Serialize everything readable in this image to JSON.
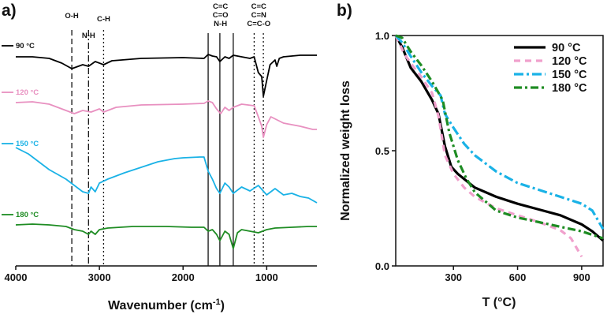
{
  "chart_data": [
    {
      "panel_label": "a)",
      "type": "line",
      "title": "",
      "xlabel": "Wavenumber (cm",
      "xlabel_superscript": "-1",
      "xlabel_close": ")",
      "ylabel": "",
      "xlim": [
        4000,
        400
      ],
      "x_ticks": [
        "4000",
        "3000",
        "2000",
        "1000"
      ],
      "x_tick_values": [
        4000,
        3000,
        2000,
        1000
      ],
      "series": [
        {
          "name": "90 °C",
          "color": "#000000"
        },
        {
          "name": "120 °C",
          "color": "#e890c0"
        },
        {
          "name": "150 °C",
          "color": "#1ab2e6"
        },
        {
          "name": "180 °C",
          "color": "#1e8c23"
        }
      ],
      "annotations": [
        {
          "lines": [
            "O-H"
          ],
          "wavenumber": 3330,
          "style": "dashed"
        },
        {
          "lines": [
            "N-H"
          ],
          "wavenumber": 3130,
          "style": "dashdot"
        },
        {
          "lines": [
            "C-H"
          ],
          "wavenumber": 2950,
          "style": "dotted"
        },
        {
          "lines": [
            "C=C",
            "C=O",
            "N-H"
          ],
          "wavenumber": 1560,
          "style": "solid"
        },
        {
          "lines": [
            "C=C",
            "C=N",
            "C=C-O"
          ],
          "wavenumber": 1100,
          "style": "dotted"
        }
      ]
    },
    {
      "panel_label": "b)",
      "type": "line",
      "title": "",
      "xlabel": "T (°C)",
      "ylabel": "Normalized weight loss",
      "xlim": [
        30,
        1000
      ],
      "ylim": [
        0,
        1.0
      ],
      "x_ticks": [
        "300",
        "600",
        "900"
      ],
      "x_tick_values": [
        300,
        600,
        900
      ],
      "y_ticks": [
        "0.0",
        "0.5",
        "1.0"
      ],
      "y_tick_values": [
        0.0,
        0.5,
        1.0
      ],
      "legend_position": "top-right",
      "series": [
        {
          "name": "90 °C",
          "color": "#000000",
          "dash": "solid",
          "x": [
            30,
            60,
            100,
            150,
            200,
            230,
            260,
            290,
            320,
            360,
            400,
            500,
            600,
            700,
            800,
            900,
            950,
            1000
          ],
          "y": [
            1.0,
            0.95,
            0.86,
            0.8,
            0.72,
            0.66,
            0.52,
            0.43,
            0.4,
            0.37,
            0.34,
            0.3,
            0.27,
            0.245,
            0.22,
            0.18,
            0.15,
            0.11
          ]
        },
        {
          "name": "120 °C",
          "color": "#f0a0cc",
          "dash": "8,6",
          "x": [
            30,
            70,
            100,
            150,
            200,
            230,
            260,
            300,
            350,
            400,
            500,
            600,
            700,
            800,
            850,
            900
          ],
          "y": [
            1.0,
            0.92,
            0.88,
            0.82,
            0.75,
            0.65,
            0.48,
            0.4,
            0.34,
            0.3,
            0.25,
            0.22,
            0.19,
            0.155,
            0.12,
            0.04
          ]
        },
        {
          "name": "150 °C",
          "color": "#1ab2e6",
          "dash": "12,4,3,4",
          "x": [
            30,
            60,
            100,
            150,
            200,
            240,
            260,
            300,
            350,
            400,
            500,
            600,
            700,
            800,
            900,
            950,
            1000
          ],
          "y": [
            1.0,
            0.97,
            0.91,
            0.84,
            0.78,
            0.74,
            0.66,
            0.6,
            0.53,
            0.48,
            0.41,
            0.36,
            0.33,
            0.3,
            0.27,
            0.24,
            0.16
          ]
        },
        {
          "name": "180 °C",
          "color": "#1e8c23",
          "dash": "10,4,3,4",
          "x": [
            30,
            60,
            100,
            150,
            200,
            250,
            280,
            320,
            360,
            400,
            500,
            600,
            700,
            800,
            900,
            1000
          ],
          "y": [
            1.0,
            0.99,
            0.93,
            0.87,
            0.8,
            0.72,
            0.58,
            0.46,
            0.38,
            0.32,
            0.24,
            0.21,
            0.19,
            0.17,
            0.15,
            0.12
          ]
        }
      ]
    }
  ]
}
